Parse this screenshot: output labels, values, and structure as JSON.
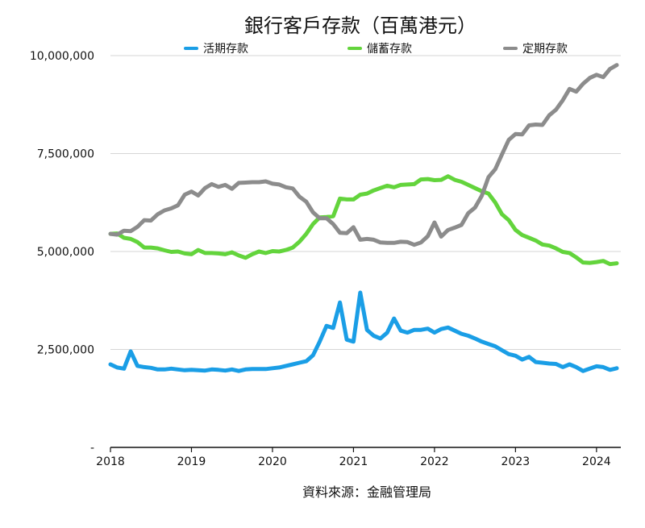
{
  "chart_data": {
    "type": "line",
    "title": "銀行客戶存款（百萬港元）",
    "source": "資料來源：金融管理局",
    "xlim": [
      2018.0,
      2024.3
    ],
    "ylim": [
      0,
      10000000
    ],
    "x_ticks": [
      2018,
      2019,
      2020,
      2021,
      2022,
      2023,
      2024
    ],
    "y_ticks": [
      {
        "value": 0,
        "label": "-"
      },
      {
        "value": 2500000,
        "label": "2,500,000"
      },
      {
        "value": 5000000,
        "label": "5,000,000"
      },
      {
        "value": 7500000,
        "label": "7,500,000"
      },
      {
        "value": 10000000,
        "label": "10,000,000"
      }
    ],
    "legend_position": "top",
    "x": [
      2018.0,
      2018.083,
      2018.167,
      2018.25,
      2018.333,
      2018.417,
      2018.5,
      2018.583,
      2018.667,
      2018.75,
      2018.833,
      2018.917,
      2019.0,
      2019.083,
      2019.167,
      2019.25,
      2019.333,
      2019.417,
      2019.5,
      2019.583,
      2019.667,
      2019.75,
      2019.833,
      2019.917,
      2020.0,
      2020.083,
      2020.167,
      2020.25,
      2020.333,
      2020.417,
      2020.5,
      2020.583,
      2020.667,
      2020.75,
      2020.833,
      2020.917,
      2021.0,
      2021.083,
      2021.167,
      2021.25,
      2021.333,
      2021.417,
      2021.5,
      2021.583,
      2021.667,
      2021.75,
      2021.833,
      2021.917,
      2022.0,
      2022.083,
      2022.167,
      2022.25,
      2022.333,
      2022.417,
      2022.5,
      2022.583,
      2022.667,
      2022.75,
      2022.833,
      2022.917,
      2023.0,
      2023.083,
      2023.167,
      2023.25,
      2023.333,
      2023.417,
      2023.5,
      2023.583,
      2023.667,
      2023.75,
      2023.833,
      2023.917,
      2024.0,
      2024.083,
      2024.167,
      2024.25
    ],
    "series": [
      {
        "name": "活期存款",
        "color": "#1a9ee6",
        "values": [
          2120000,
          2040000,
          2010000,
          2450000,
          2080000,
          2050000,
          2030000,
          1990000,
          1990000,
          2010000,
          1990000,
          1970000,
          1980000,
          1970000,
          1960000,
          1990000,
          1980000,
          1960000,
          1990000,
          1950000,
          1990000,
          2000000,
          2000000,
          2000000,
          2020000,
          2040000,
          2080000,
          2120000,
          2160000,
          2200000,
          2350000,
          2700000,
          3100000,
          3050000,
          3700000,
          2750000,
          2700000,
          3950000,
          3000000,
          2850000,
          2780000,
          2930000,
          3290000,
          2980000,
          2930000,
          3000000,
          3000000,
          3030000,
          2930000,
          3020000,
          3060000,
          2980000,
          2900000,
          2850000,
          2780000,
          2700000,
          2640000,
          2580000,
          2480000,
          2380000,
          2340000,
          2240000,
          2310000,
          2180000,
          2160000,
          2140000,
          2130000,
          2050000,
          2120000,
          2050000,
          1950000,
          2010000,
          2070000,
          2050000,
          1980000,
          2020000
        ]
      },
      {
        "name": "儲蓄存款",
        "color": "#63d43c",
        "values": [
          5450000,
          5460000,
          5350000,
          5320000,
          5240000,
          5100000,
          5100000,
          5080000,
          5030000,
          4990000,
          5000000,
          4950000,
          4930000,
          5040000,
          4960000,
          4960000,
          4950000,
          4930000,
          4980000,
          4900000,
          4840000,
          4930000,
          5000000,
          4960000,
          5010000,
          5000000,
          5040000,
          5100000,
          5250000,
          5450000,
          5700000,
          5870000,
          5880000,
          5900000,
          6350000,
          6330000,
          6330000,
          6450000,
          6480000,
          6560000,
          6620000,
          6680000,
          6640000,
          6700000,
          6710000,
          6720000,
          6840000,
          6850000,
          6820000,
          6830000,
          6920000,
          6830000,
          6780000,
          6700000,
          6620000,
          6540000,
          6480000,
          6250000,
          5950000,
          5800000,
          5550000,
          5420000,
          5350000,
          5280000,
          5180000,
          5150000,
          5080000,
          4990000,
          4960000,
          4850000,
          4720000,
          4710000,
          4730000,
          4760000,
          4680000,
          4700000
        ]
      },
      {
        "name": "定期存款",
        "color": "#8c8c8c",
        "values": [
          5450000,
          5430000,
          5530000,
          5520000,
          5630000,
          5800000,
          5790000,
          5950000,
          6050000,
          6100000,
          6180000,
          6450000,
          6530000,
          6430000,
          6620000,
          6720000,
          6650000,
          6700000,
          6600000,
          6750000,
          6760000,
          6770000,
          6770000,
          6790000,
          6730000,
          6710000,
          6640000,
          6610000,
          6400000,
          6270000,
          6000000,
          5850000,
          5850000,
          5700000,
          5480000,
          5470000,
          5620000,
          5300000,
          5320000,
          5300000,
          5230000,
          5220000,
          5220000,
          5250000,
          5240000,
          5170000,
          5230000,
          5390000,
          5740000,
          5380000,
          5550000,
          5610000,
          5680000,
          5980000,
          6120000,
          6420000,
          6900000,
          7100000,
          7480000,
          7850000,
          8000000,
          7990000,
          8220000,
          8240000,
          8230000,
          8480000,
          8620000,
          8860000,
          9150000,
          9080000,
          9280000,
          9430000,
          9510000,
          9450000,
          9660000,
          9760000
        ]
      }
    ]
  }
}
